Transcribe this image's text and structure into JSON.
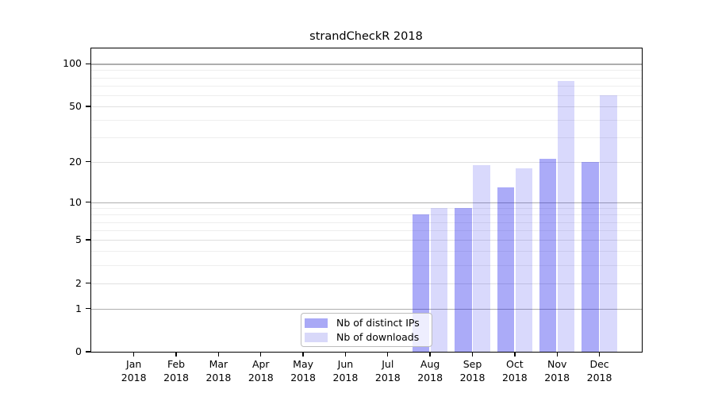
{
  "chart_data": {
    "type": "bar",
    "title": "strandCheckR 2018",
    "year_label": "2018",
    "x_months": [
      "Jan",
      "Feb",
      "Mar",
      "Apr",
      "May",
      "Jun",
      "Jul",
      "Aug",
      "Sep",
      "Oct",
      "Nov",
      "Dec"
    ],
    "series": [
      {
        "name": "Nb of distinct IPs",
        "legend_color": "#a9a9f6",
        "fill": "rgba(13,13,235,0.345)",
        "values": [
          0,
          0,
          0,
          0,
          0,
          0,
          0,
          8,
          9,
          13,
          21,
          20
        ]
      },
      {
        "name": "Nb of downloads",
        "legend_color": "#d8d8f9",
        "fill": "rgba(13,13,235,0.155)",
        "values": [
          0,
          0,
          0,
          0,
          0,
          0,
          0,
          9,
          19,
          18,
          76,
          60
        ]
      }
    ],
    "yscale": "log1p",
    "ylim": [
      0,
      130
    ],
    "y_ticks_labeled": [
      0,
      1,
      2,
      5,
      10,
      20,
      50,
      100
    ],
    "y_gridlines_decade": [
      1,
      10,
      100
    ],
    "y_gridlines_labeled": [
      2,
      5,
      20,
      50
    ],
    "y_gridlines_minor": [
      3,
      4,
      6,
      7,
      8,
      9,
      30,
      40,
      60,
      70,
      80,
      90
    ],
    "grid": true,
    "legend_position": "lower center, inside plot",
    "colors": {
      "bar_dark_hex": "#acacf8",
      "bar_light_hex": "#d9d9fc",
      "grid_decade_hex": "#aeaeae",
      "grid_light_hex": "#e0e0e0",
      "spine_hex": "#000000"
    }
  }
}
